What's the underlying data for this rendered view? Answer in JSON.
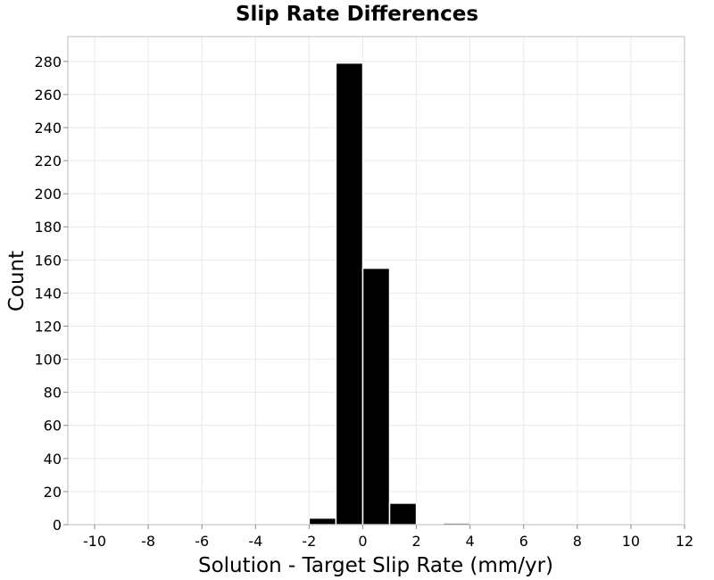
{
  "chart_data": {
    "type": "bar",
    "title": "Slip Rate Differences",
    "xlabel": "Solution - Target Slip Rate (mm/yr)",
    "ylabel": "Count",
    "xlim": [
      -11,
      12
    ],
    "ylim": [
      0,
      295
    ],
    "x_ticks": [
      -10,
      -8,
      -6,
      -4,
      -2,
      0,
      2,
      4,
      6,
      8,
      10,
      12
    ],
    "y_ticks": [
      0,
      20,
      40,
      60,
      80,
      100,
      120,
      140,
      160,
      180,
      200,
      220,
      240,
      260,
      280
    ],
    "bin_width": 1,
    "bins": [
      {
        "x": -11,
        "value": 0
      },
      {
        "x": -10,
        "value": 0
      },
      {
        "x": -9,
        "value": 0
      },
      {
        "x": -8,
        "value": 0
      },
      {
        "x": -7,
        "value": 0
      },
      {
        "x": -6,
        "value": 0
      },
      {
        "x": -5,
        "value": 0
      },
      {
        "x": -4,
        "value": 0
      },
      {
        "x": -3,
        "value": 0
      },
      {
        "x": -2,
        "value": 4
      },
      {
        "x": -1,
        "value": 279
      },
      {
        "x": 0,
        "value": 155
      },
      {
        "x": 1,
        "value": 13
      },
      {
        "x": 2,
        "value": 0
      },
      {
        "x": 3,
        "value": 1
      },
      {
        "x": 4,
        "value": 0
      },
      {
        "x": 5,
        "value": 0
      },
      {
        "x": 6,
        "value": 0
      },
      {
        "x": 7,
        "value": 0
      },
      {
        "x": 8,
        "value": 0
      },
      {
        "x": 9,
        "value": 0
      },
      {
        "x": 10,
        "value": 0
      },
      {
        "x": 11,
        "value": 0
      }
    ],
    "grid": true,
    "legend": "none",
    "bar_color": "#000000",
    "bar_edge_color": "#ffffff",
    "grid_color": "#e9e9e9"
  }
}
